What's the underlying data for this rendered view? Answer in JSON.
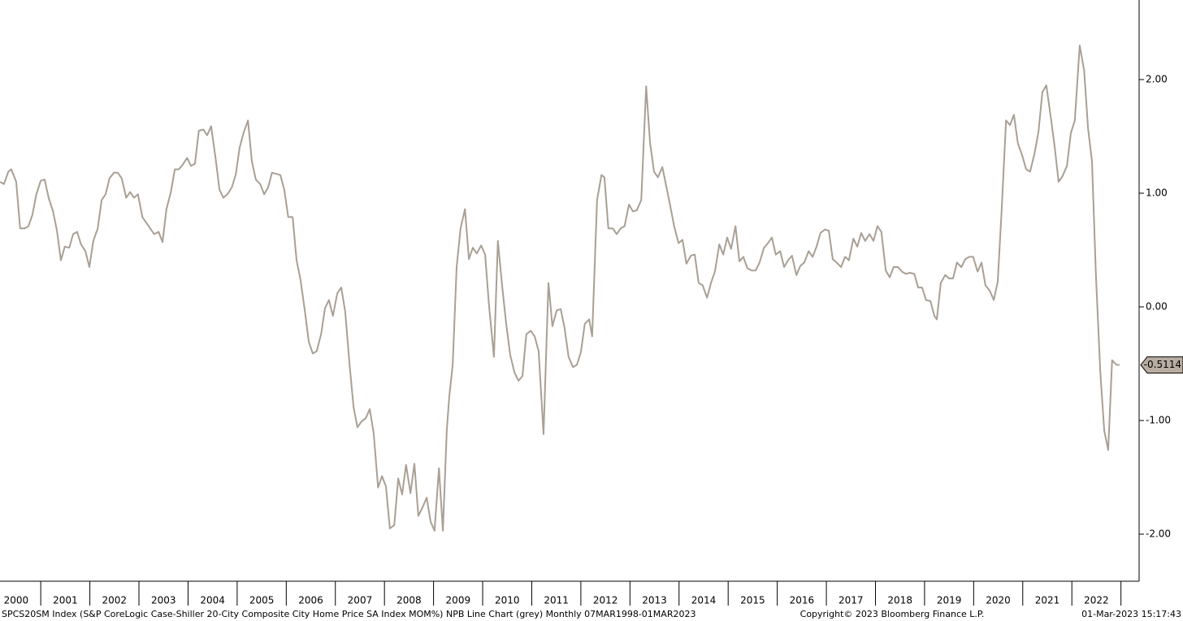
{
  "chart_data": {
    "type": "line",
    "x": [
      2000.17,
      2000.25,
      2000.34,
      2000.4,
      2000.5,
      2000.58,
      2000.67,
      2000.75,
      2000.83,
      2000.91,
      2001.0,
      2001.08,
      2001.16,
      2001.25,
      2001.33,
      2001.41,
      2001.49,
      2001.58,
      2001.66,
      2001.74,
      2001.82,
      2001.91,
      2001.99,
      2002.07,
      2002.16,
      2002.24,
      2002.32,
      2002.4,
      2002.49,
      2002.57,
      2002.65,
      2002.74,
      2002.82,
      2002.9,
      2002.98,
      2003.07,
      2003.15,
      2003.23,
      2003.31,
      2003.4,
      2003.48,
      2003.56,
      2003.65,
      2003.73,
      2003.81,
      2003.89,
      2003.98,
      2004.06,
      2004.14,
      2004.22,
      2004.31,
      2004.39,
      2004.47,
      2004.56,
      2004.64,
      2004.72,
      2004.8,
      2004.89,
      2004.97,
      2005.05,
      2005.13,
      2005.22,
      2005.3,
      2005.38,
      2005.47,
      2005.55,
      2005.63,
      2005.71,
      2005.8,
      2005.88,
      2005.96,
      2006.04,
      2006.13,
      2006.21,
      2006.29,
      2006.38,
      2006.46,
      2006.54,
      2006.62,
      2006.71,
      2006.79,
      2006.87,
      2006.95,
      2007.04,
      2007.12,
      2007.2,
      2007.29,
      2007.37,
      2007.45,
      2007.53,
      2007.62,
      2007.7,
      2007.78,
      2007.87,
      2007.95,
      2008.03,
      2008.11,
      2008.2,
      2008.28,
      2008.36,
      2008.44,
      2008.53,
      2008.61,
      2008.69,
      2008.78,
      2008.86,
      2008.94,
      2009.02,
      2009.11,
      2009.19,
      2009.27,
      2009.32,
      2009.39,
      2009.47,
      2009.55,
      2009.64,
      2009.72,
      2009.8,
      2009.88,
      2009.97,
      2010.05,
      2010.13,
      2010.23,
      2010.31,
      2010.4,
      2010.48,
      2010.56,
      2010.65,
      2010.73,
      2010.81,
      2010.89,
      2010.98,
      2011.06,
      2011.14,
      2011.24,
      2011.34,
      2011.42,
      2011.51,
      2011.59,
      2011.67,
      2011.75,
      2011.84,
      2011.92,
      2012.0,
      2012.08,
      2012.17,
      2012.23,
      2012.33,
      2012.42,
      2012.48,
      2012.56,
      2012.65,
      2012.73,
      2012.81,
      2012.89,
      2012.98,
      2013.06,
      2013.14,
      2013.23,
      2013.33,
      2013.41,
      2013.49,
      2013.57,
      2013.66,
      2013.74,
      2013.82,
      2013.9,
      2013.99,
      2014.07,
      2014.15,
      2014.24,
      2014.32,
      2014.4,
      2014.48,
      2014.57,
      2014.65,
      2014.73,
      2014.82,
      2014.9,
      2014.98,
      2015.06,
      2015.15,
      2015.23,
      2015.31,
      2015.39,
      2015.48,
      2015.56,
      2015.64,
      2015.73,
      2015.81,
      2015.89,
      2015.97,
      2016.06,
      2016.14,
      2016.22,
      2016.3,
      2016.39,
      2016.47,
      2016.55,
      2016.64,
      2016.72,
      2016.8,
      2016.88,
      2016.97,
      2017.05,
      2017.13,
      2017.21,
      2017.3,
      2017.38,
      2017.46,
      2017.55,
      2017.63,
      2017.71,
      2017.79,
      2017.88,
      2017.96,
      2018.04,
      2018.12,
      2018.21,
      2018.29,
      2018.37,
      2018.46,
      2018.54,
      2018.62,
      2018.7,
      2018.79,
      2018.87,
      2018.95,
      2019.03,
      2019.12,
      2019.2,
      2019.25,
      2019.33,
      2019.42,
      2019.5,
      2019.58,
      2019.66,
      2019.75,
      2019.83,
      2019.91,
      2019.99,
      2020.08,
      2020.16,
      2020.24,
      2020.33,
      2020.41,
      2020.49,
      2020.57,
      2020.66,
      2020.74,
      2020.82,
      2020.9,
      2020.99,
      2021.07,
      2021.15,
      2021.24,
      2021.32,
      2021.4,
      2021.48,
      2021.57,
      2021.65,
      2021.73,
      2021.81,
      2021.9,
      2021.98,
      2022.06,
      2022.16,
      2022.25,
      2022.33,
      2022.41,
      2022.49,
      2022.58,
      2022.66,
      2022.74,
      2022.82,
      2022.91,
      2022.97
    ],
    "series": [
      {
        "color": "#a99f94",
        "values": [
          1.1,
          1.08,
          1.19,
          1.21,
          1.1,
          0.69,
          0.69,
          0.71,
          0.81,
          0.99,
          1.11,
          1.12,
          0.96,
          0.84,
          0.67,
          0.41,
          0.53,
          0.52,
          0.64,
          0.66,
          0.55,
          0.49,
          0.35,
          0.58,
          0.69,
          0.94,
          0.99,
          1.13,
          1.18,
          1.18,
          1.13,
          0.96,
          1.01,
          0.96,
          0.99,
          0.79,
          0.74,
          0.69,
          0.64,
          0.66,
          0.57,
          0.86,
          1.01,
          1.21,
          1.21,
          1.25,
          1.31,
          1.24,
          1.26,
          1.55,
          1.56,
          1.51,
          1.59,
          1.31,
          1.03,
          0.96,
          0.99,
          1.05,
          1.16,
          1.4,
          1.53,
          1.64,
          1.28,
          1.12,
          1.08,
          0.99,
          1.05,
          1.18,
          1.17,
          1.16,
          1.03,
          0.79,
          0.79,
          0.41,
          0.24,
          -0.04,
          -0.31,
          -0.41,
          -0.39,
          -0.24,
          -0.01,
          0.06,
          -0.08,
          0.12,
          0.17,
          -0.04,
          -0.51,
          -0.88,
          -1.06,
          -1.01,
          -0.98,
          -0.9,
          -1.11,
          -1.59,
          -1.49,
          -1.58,
          -1.95,
          -1.92,
          -1.51,
          -1.65,
          -1.39,
          -1.64,
          -1.38,
          -1.84,
          -1.76,
          -1.68,
          -1.89,
          -1.97,
          -1.42,
          -1.97,
          -1.08,
          -0.79,
          -0.51,
          0.35,
          0.69,
          0.86,
          0.42,
          0.52,
          0.47,
          0.54,
          0.46,
          0.01,
          -0.44,
          0.58,
          0.17,
          -0.15,
          -0.42,
          -0.58,
          -0.65,
          -0.61,
          -0.24,
          -0.21,
          -0.26,
          -0.39,
          -1.12,
          0.21,
          -0.17,
          -0.03,
          -0.02,
          -0.19,
          -0.44,
          -0.53,
          -0.51,
          -0.4,
          -0.15,
          -0.11,
          -0.26,
          0.94,
          1.16,
          1.14,
          0.69,
          0.69,
          0.64,
          0.69,
          0.71,
          0.9,
          0.84,
          0.85,
          0.94,
          1.94,
          1.44,
          1.19,
          1.14,
          1.23,
          1.06,
          0.89,
          0.71,
          0.56,
          0.59,
          0.38,
          0.45,
          0.46,
          0.21,
          0.19,
          0.08,
          0.21,
          0.31,
          0.55,
          0.46,
          0.61,
          0.51,
          0.71,
          0.4,
          0.44,
          0.34,
          0.32,
          0.32,
          0.39,
          0.52,
          0.56,
          0.61,
          0.46,
          0.49,
          0.35,
          0.41,
          0.45,
          0.28,
          0.36,
          0.39,
          0.49,
          0.44,
          0.53,
          0.65,
          0.68,
          0.67,
          0.42,
          0.39,
          0.35,
          0.44,
          0.41,
          0.6,
          0.53,
          0.65,
          0.58,
          0.64,
          0.58,
          0.71,
          0.66,
          0.32,
          0.26,
          0.35,
          0.35,
          0.31,
          0.29,
          0.3,
          0.29,
          0.17,
          0.17,
          0.06,
          0.05,
          -0.08,
          -0.11,
          0.21,
          0.28,
          0.25,
          0.25,
          0.39,
          0.35,
          0.42,
          0.44,
          0.44,
          0.31,
          0.39,
          0.19,
          0.14,
          0.06,
          0.22,
          0.85,
          1.64,
          1.6,
          1.69,
          1.44,
          1.33,
          1.21,
          1.19,
          1.35,
          1.54,
          1.89,
          1.95,
          1.67,
          1.41,
          1.1,
          1.15,
          1.24,
          1.53,
          1.64,
          2.3,
          2.08,
          1.57,
          1.28,
          0.28,
          -0.58,
          -1.09,
          -1.26,
          -0.47,
          -0.51,
          -0.5114
        ]
      }
    ],
    "xlim": [
      2000.17,
      2023.37
    ],
    "xticks": [
      2000,
      2001,
      2002,
      2003,
      2004,
      2005,
      2006,
      2007,
      2008,
      2009,
      2010,
      2011,
      2012,
      2013,
      2014,
      2015,
      2016,
      2017,
      2018,
      2019,
      2020,
      2021,
      2022
    ],
    "ylim": [
      -2.4,
      2.7
    ],
    "yticks": [
      {
        "value": -2,
        "label": "-2.00"
      },
      {
        "value": -1,
        "label": "-1.00"
      },
      {
        "value": 0,
        "label": "0.00"
      },
      {
        "value": 1,
        "label": "1.00"
      },
      {
        "value": 2,
        "label": "2.00"
      }
    ],
    "footer_left": "SPCS20SM Index (S&P CoreLogic Case-Shiller 20-City Composite City Home Price SA Index MOM%) NPB Line Chart (grey)  Monthly 07MAR1998-01MAR2023",
    "footer_center": "Copyright© 2023 Bloomberg Finance L.P.",
    "footer_right": "01-Mar-2023 15:17:43"
  }
}
